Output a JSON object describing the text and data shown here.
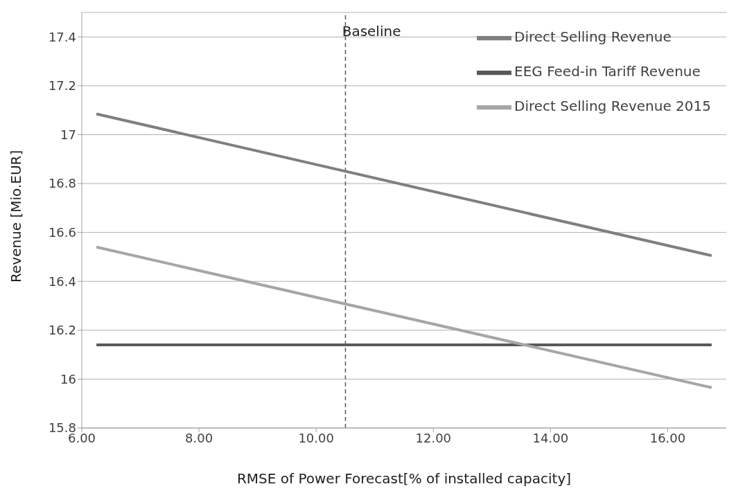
{
  "chart_data": {
    "type": "line",
    "xlabel": "RMSE of Power Forecast[% of installed capacity]",
    "ylabel": "Revenue [Mio.EUR]",
    "x": [
      6.25,
      16.75
    ],
    "series": [
      {
        "name": "Direct Selling Revenue",
        "color": "#7f7f7f",
        "values": [
          17.085,
          16.505
        ]
      },
      {
        "name": "EEG Feed-in Tariff Revenue",
        "color": "#595959",
        "values": [
          16.14,
          16.14
        ]
      },
      {
        "name": "Direct Selling Revenue 2015",
        "color": "#a6a6a6",
        "values": [
          16.54,
          15.965
        ]
      }
    ],
    "xlim": [
      6,
      17
    ],
    "xticks": [
      {
        "value": 6,
        "label": "6.00"
      },
      {
        "value": 8,
        "label": "8.00"
      },
      {
        "value": 10,
        "label": "10.00"
      },
      {
        "value": 12,
        "label": "12.00"
      },
      {
        "value": 14,
        "label": "14.00"
      },
      {
        "value": 16,
        "label": "16.00"
      }
    ],
    "ylim": [
      15.8,
      17.5
    ],
    "yticks": [
      15.8,
      16,
      16.2,
      16.4,
      16.6,
      16.8,
      17,
      17.2,
      17.4
    ],
    "ref_lines": [
      {
        "axis": "x",
        "value": 10.5,
        "label": "Baseline",
        "color": "#595959",
        "line_style": "dashed"
      }
    ],
    "grid": "y",
    "legend": "top right",
    "marker": "none",
    "line_style": "solid"
  }
}
